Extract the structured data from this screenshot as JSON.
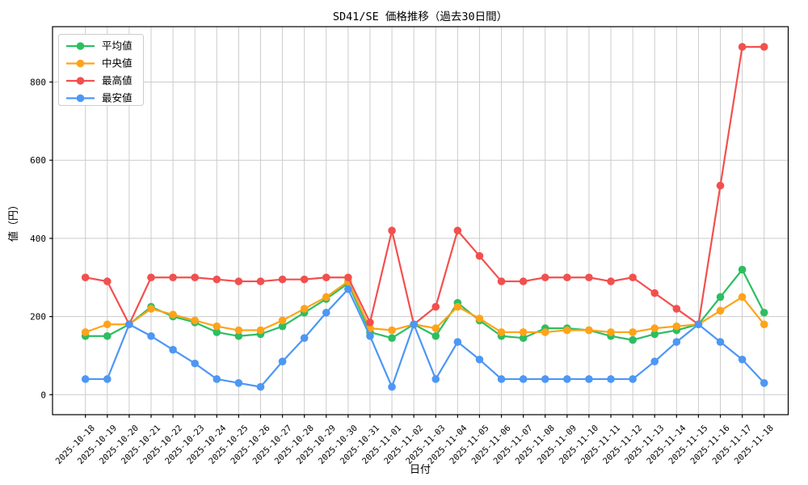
{
  "figure": {
    "background": "#ffffff",
    "grid_color": "#cccccc",
    "spine_color": "#000000"
  },
  "chart_data": {
    "type": "line",
    "title": "SD41/SE 価格推移（過去30日間）",
    "xlabel": "日付",
    "ylabel": "値（円）",
    "grid": true,
    "legend_position": "upper left",
    "yticks": [
      0,
      200,
      400,
      600,
      800
    ],
    "ylim": [
      -51,
      942
    ],
    "categories": [
      "2025-10-18",
      "2025-10-19",
      "2025-10-20",
      "2025-10-21",
      "2025-10-22",
      "2025-10-23",
      "2025-10-24",
      "2025-10-25",
      "2025-10-26",
      "2025-10-27",
      "2025-10-28",
      "2025-10-29",
      "2025-10-30",
      "2025-10-31",
      "2025-11-01",
      "2025-11-02",
      "2025-11-03",
      "2025-11-04",
      "2025-11-05",
      "2025-11-06",
      "2025-11-07",
      "2025-11-08",
      "2025-11-09",
      "2025-11-10",
      "2025-11-11",
      "2025-11-12",
      "2025-11-13",
      "2025-11-14",
      "2025-11-15",
      "2025-11-16",
      "2025-11-17",
      "2025-11-18"
    ],
    "series": [
      {
        "id": "avg",
        "name": "平均値",
        "color": "#2dbe60",
        "values": [
          150,
          150,
          180,
          225,
          200,
          185,
          160,
          150,
          155,
          175,
          210,
          245,
          285,
          160,
          145,
          180,
          150,
          235,
          190,
          150,
          145,
          170,
          170,
          165,
          150,
          140,
          155,
          165,
          180,
          250,
          320,
          210
        ]
      },
      {
        "id": "median",
        "name": "中央値",
        "color": "#ffa319",
        "values": [
          160,
          180,
          180,
          220,
          205,
          190,
          175,
          165,
          165,
          190,
          220,
          250,
          290,
          170,
          165,
          180,
          170,
          225,
          195,
          160,
          160,
          160,
          165,
          165,
          160,
          160,
          170,
          175,
          180,
          215,
          250,
          180
        ]
      },
      {
        "id": "max",
        "name": "最高値",
        "color": "#f2504e",
        "values": [
          300,
          290,
          180,
          300,
          300,
          300,
          295,
          290,
          290,
          295,
          295,
          300,
          300,
          185,
          420,
          180,
          225,
          420,
          355,
          290,
          290,
          300,
          300,
          300,
          290,
          300,
          260,
          220,
          180,
          535,
          890,
          890
        ]
      },
      {
        "id": "min",
        "name": "最安値",
        "color": "#4d97f5",
        "values": [
          40,
          40,
          180,
          150,
          115,
          80,
          40,
          30,
          20,
          85,
          145,
          210,
          270,
          150,
          20,
          180,
          40,
          135,
          90,
          40,
          40,
          40,
          40,
          40,
          40,
          40,
          85,
          135,
          180,
          135,
          90,
          30
        ]
      }
    ]
  }
}
